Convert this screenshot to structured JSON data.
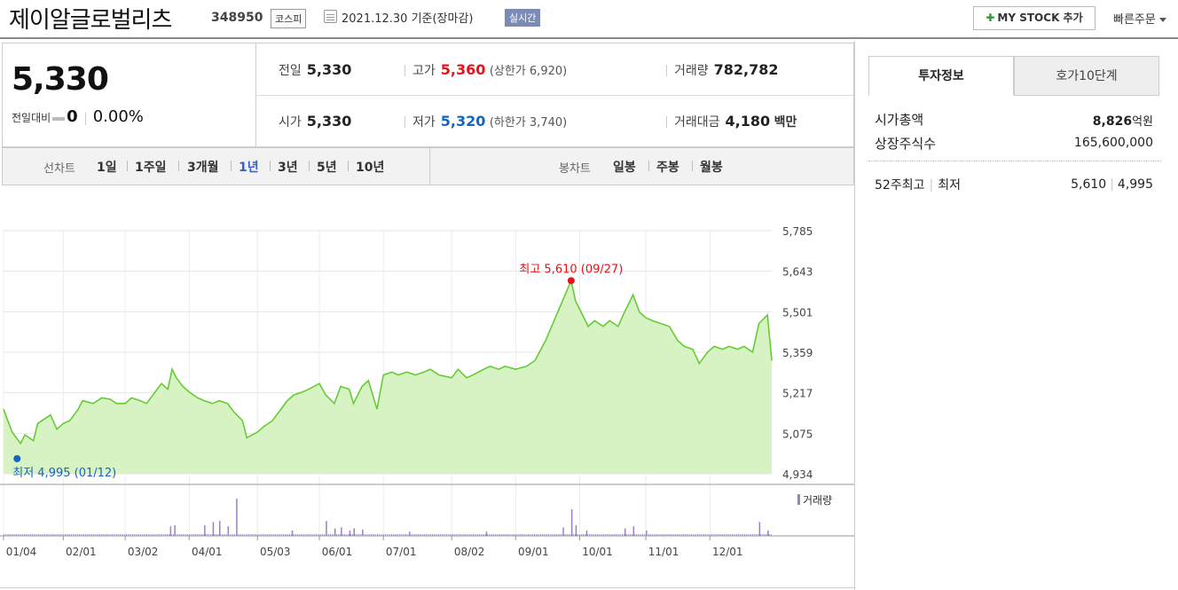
{
  "header": {
    "title": "제이알글로벌리츠",
    "code": "348950",
    "market": "코스피",
    "date": "2021.12.30 기준(장마감)",
    "realtime": "실시간",
    "mystock_label": "MY STOCK 추가",
    "quickorder_label": "빠른주문"
  },
  "summary": {
    "price": "5,330",
    "change_label": "전일대비",
    "change_value": "0",
    "change_rate": "0.00%",
    "prev_label": "전일",
    "prev_value": "5,330",
    "high_label": "고가",
    "high_value": "5,360",
    "upper_limit": "(상한가 6,920)",
    "volume_label": "거래량",
    "volume_value": "782,782",
    "open_label": "시가",
    "open_value": "5,330",
    "low_label": "저가",
    "low_value": "5,320",
    "lower_limit": "(하한가 3,740)",
    "amount_label": "거래대금",
    "amount_value": "4,180",
    "amount_unit": "백만"
  },
  "periods": {
    "line_label": "선차트",
    "line_options": [
      "1일",
      "1주일",
      "3개월",
      "1년",
      "3년",
      "5년",
      "10년"
    ],
    "line_selected": "1년",
    "candle_label": "봉차트",
    "candle_options": [
      "일봉",
      "주봉",
      "월봉"
    ]
  },
  "chart_data": {
    "type": "area",
    "y_ticks": [
      "5,785",
      "5,643",
      "5,501",
      "5,359",
      "5,217",
      "5,075",
      "4,934"
    ],
    "ylim": [
      4934,
      5785
    ],
    "x_ticks": [
      "01/04",
      "02/01",
      "03/02",
      "04/01",
      "05/03",
      "06/01",
      "07/01",
      "08/02",
      "09/01",
      "10/01",
      "11/01",
      "12/01"
    ],
    "x_range": [
      "01/04",
      "12/30"
    ],
    "series": [
      {
        "points": [
          [
            "01/04",
            5160
          ],
          [
            "01/06",
            5120
          ],
          [
            "01/08",
            5080
          ],
          [
            "01/12",
            5040
          ],
          [
            "01/14",
            5070
          ],
          [
            "01/18",
            5050
          ],
          [
            "01/20",
            5110
          ],
          [
            "01/22",
            5120
          ],
          [
            "01/26",
            5140
          ],
          [
            "01/29",
            5090
          ],
          [
            "02/01",
            5110
          ],
          [
            "02/04",
            5120
          ],
          [
            "02/08",
            5160
          ],
          [
            "02/10",
            5190
          ],
          [
            "02/15",
            5180
          ],
          [
            "02/19",
            5200
          ],
          [
            "02/23",
            5195
          ],
          [
            "02/26",
            5180
          ],
          [
            "03/02",
            5180
          ],
          [
            "03/05",
            5200
          ],
          [
            "03/09",
            5190
          ],
          [
            "03/12",
            5180
          ],
          [
            "03/16",
            5220
          ],
          [
            "03/19",
            5250
          ],
          [
            "03/22",
            5230
          ],
          [
            "03/24",
            5300
          ],
          [
            "03/26",
            5270
          ],
          [
            "03/29",
            5240
          ],
          [
            "04/01",
            5220
          ],
          [
            "04/05",
            5200
          ],
          [
            "04/08",
            5190
          ],
          [
            "04/12",
            5180
          ],
          [
            "04/15",
            5190
          ],
          [
            "04/19",
            5180
          ],
          [
            "04/22",
            5150
          ],
          [
            "04/26",
            5120
          ],
          [
            "04/28",
            5060
          ],
          [
            "05/03",
            5080
          ],
          [
            "05/06",
            5100
          ],
          [
            "05/10",
            5120
          ],
          [
            "05/13",
            5150
          ],
          [
            "05/17",
            5190
          ],
          [
            "05/20",
            5210
          ],
          [
            "05/24",
            5220
          ],
          [
            "05/27",
            5230
          ],
          [
            "06/01",
            5250
          ],
          [
            "06/04",
            5210
          ],
          [
            "06/08",
            5180
          ],
          [
            "06/11",
            5240
          ],
          [
            "06/15",
            5230
          ],
          [
            "06/17",
            5180
          ],
          [
            "06/21",
            5240
          ],
          [
            "06/24",
            5260
          ],
          [
            "06/28",
            5160
          ],
          [
            "07/01",
            5280
          ],
          [
            "07/05",
            5290
          ],
          [
            "07/08",
            5280
          ],
          [
            "07/12",
            5290
          ],
          [
            "07/16",
            5280
          ],
          [
            "07/20",
            5290
          ],
          [
            "07/23",
            5300
          ],
          [
            "07/27",
            5280
          ],
          [
            "08/02",
            5270
          ],
          [
            "08/05",
            5300
          ],
          [
            "08/09",
            5270
          ],
          [
            "08/12",
            5280
          ],
          [
            "08/17",
            5300
          ],
          [
            "08/20",
            5310
          ],
          [
            "08/24",
            5300
          ],
          [
            "08/27",
            5310
          ],
          [
            "09/01",
            5300
          ],
          [
            "09/06",
            5310
          ],
          [
            "09/10",
            5330
          ],
          [
            "09/15",
            5400
          ],
          [
            "09/27",
            5610
          ],
          [
            "09/29",
            5540
          ],
          [
            "10/01",
            5510
          ],
          [
            "10/05",
            5450
          ],
          [
            "10/08",
            5470
          ],
          [
            "10/12",
            5450
          ],
          [
            "10/15",
            5470
          ],
          [
            "10/19",
            5450
          ],
          [
            "10/22",
            5500
          ],
          [
            "10/26",
            5560
          ],
          [
            "10/29",
            5500
          ],
          [
            "11/01",
            5480
          ],
          [
            "11/04",
            5470
          ],
          [
            "11/08",
            5460
          ],
          [
            "11/12",
            5450
          ],
          [
            "11/16",
            5400
          ],
          [
            "11/19",
            5380
          ],
          [
            "11/23",
            5370
          ],
          [
            "11/26",
            5320
          ],
          [
            "11/30",
            5360
          ],
          [
            "12/03",
            5380
          ],
          [
            "12/07",
            5370
          ],
          [
            "12/10",
            5380
          ],
          [
            "12/14",
            5370
          ],
          [
            "12/17",
            5380
          ],
          [
            "12/21",
            5360
          ],
          [
            "12/24",
            5460
          ],
          [
            "12/28",
            5490
          ],
          [
            "12/30",
            5330
          ]
        ],
        "color": "#66cc33",
        "fill": "#d7f3c4"
      }
    ],
    "max_label": "최고 5,610 (09/27)",
    "min_label": "최저 4,995 (01/12)",
    "max_point": [
      "09/27",
      5610
    ],
    "min_point": [
      "01/12",
      4995
    ],
    "volume_legend": "거래량",
    "volume_bars": [
      [
        "03/23",
        0.18
      ],
      [
        "03/25",
        0.2
      ],
      [
        "04/08",
        0.2
      ],
      [
        "04/12",
        0.26
      ],
      [
        "04/15",
        0.28
      ],
      [
        "04/19",
        0.18
      ],
      [
        "04/23",
        0.7
      ],
      [
        "05/19",
        0.1
      ],
      [
        "06/04",
        0.28
      ],
      [
        "06/08",
        0.14
      ],
      [
        "06/11",
        0.16
      ],
      [
        "06/15",
        0.1
      ],
      [
        "06/17",
        0.14
      ],
      [
        "06/21",
        0.12
      ],
      [
        "07/13",
        0.08
      ],
      [
        "08/18",
        0.08
      ],
      [
        "09/23",
        0.16
      ],
      [
        "09/27",
        0.5
      ],
      [
        "09/29",
        0.2
      ],
      [
        "10/04",
        0.1
      ],
      [
        "10/22",
        0.14
      ],
      [
        "10/26",
        0.18
      ],
      [
        "11/01",
        0.1
      ],
      [
        "12/24",
        0.26
      ],
      [
        "12/28",
        0.1
      ]
    ],
    "colors": {
      "line": "#66cc33",
      "fill": "#d7f3c4",
      "max": "#e4131b",
      "min": "#1565c0",
      "volume": "#9b7fc9"
    }
  },
  "invest": {
    "tab_info": "투자정보",
    "tab_hoga": "호가10단계",
    "mktcap_label": "시가총액",
    "mktcap_value": "8,826",
    "mktcap_unit": "억원",
    "shares_label": "상장주식수",
    "shares_value": "165,600,000",
    "w52_label": "52주최고",
    "w52_low_label": "최저",
    "w52_high": "5,610",
    "w52_low": "4,995"
  }
}
